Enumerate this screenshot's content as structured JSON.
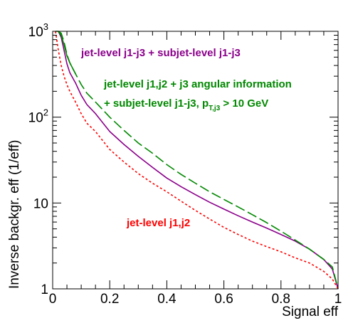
{
  "chart_data": {
    "type": "line",
    "xlabel": "Signal eff",
    "ylabel": "Inverse backgr. eff (1/eff)",
    "xlim": [
      0,
      1
    ],
    "ylim": [
      1,
      1000
    ],
    "y_scale": "log",
    "grid": false,
    "x_ticks": [
      "0",
      "0.2",
      "0.4",
      "0.6",
      "0.8",
      "1"
    ],
    "y_ticks": [
      "1",
      "10"
    ],
    "y_ticks_pow": [
      {
        "base": "10",
        "exp": "2"
      },
      {
        "base": "10",
        "exp": "3"
      }
    ],
    "annotations": {
      "purple": "jet-level j1-j3 + subjet-level j1-j3",
      "green_line1": "jet-level j1,j2 + j3 angular information",
      "green_line2_pre": "+ subjet-level j1-j3, p",
      "green_line2_sub": "T,j3",
      "green_line2_post": " > 10 GeV",
      "red": "jet-level j1,j2"
    },
    "series": [
      {
        "color": "#8b008b",
        "style": "solid",
        "x": [
          0.02,
          0.03,
          0.04,
          0.05,
          0.06,
          0.08,
          0.1,
          0.12,
          0.15,
          0.2,
          0.25,
          0.3,
          0.35,
          0.4,
          0.45,
          0.5,
          0.55,
          0.6,
          0.65,
          0.7,
          0.75,
          0.8,
          0.85,
          0.9,
          0.95,
          0.98,
          1.0
        ],
        "y": [
          1000,
          850,
          600,
          420,
          330,
          250,
          180,
          140,
          110,
          68,
          48,
          35,
          26,
          19.5,
          15.5,
          12.5,
          10.2,
          8.5,
          7.1,
          6.0,
          5.1,
          4.3,
          3.6,
          2.9,
          2.2,
          1.7,
          1.0
        ]
      },
      {
        "color": "#008800",
        "style": "dashed",
        "x": [
          0.02,
          0.03,
          0.04,
          0.05,
          0.06,
          0.08,
          0.1,
          0.12,
          0.15,
          0.2,
          0.25,
          0.3,
          0.35,
          0.4,
          0.45,
          0.5,
          0.55,
          0.6,
          0.65,
          0.7,
          0.75,
          0.8,
          0.85,
          0.9,
          0.95,
          0.98,
          1.0
        ],
        "y": [
          1000,
          950,
          750,
          540,
          430,
          320,
          240,
          190,
          150,
          100,
          70,
          50,
          38,
          28,
          21.5,
          17,
          13.5,
          11,
          9.0,
          7.3,
          5.9,
          4.7,
          3.7,
          2.9,
          2.2,
          1.8,
          1.0
        ]
      },
      {
        "color": "#008800",
        "style": "solid",
        "x": [
          0.01,
          0.02,
          0.03,
          0.04,
          0.05,
          0.06,
          0.08
        ],
        "y": [
          1000,
          1000,
          900,
          700,
          520,
          430,
          320
        ]
      },
      {
        "color": "#ff0000",
        "style": "dotted",
        "x": [
          0.01,
          0.02,
          0.03,
          0.04,
          0.05,
          0.06,
          0.08,
          0.1,
          0.12,
          0.15,
          0.2,
          0.25,
          0.3,
          0.35,
          0.4,
          0.45,
          0.5,
          0.55,
          0.6,
          0.65,
          0.7,
          0.75,
          0.8,
          0.85,
          0.9,
          0.95,
          0.98,
          1.0
        ],
        "y": [
          1000,
          600,
          400,
          300,
          240,
          200,
          150,
          110,
          85,
          68,
          42,
          30,
          22,
          17,
          13.5,
          10.5,
          8.2,
          6.5,
          5.2,
          4.3,
          3.6,
          3.1,
          2.7,
          2.3,
          2.0,
          1.6,
          1.3,
          1.0
        ]
      }
    ]
  }
}
